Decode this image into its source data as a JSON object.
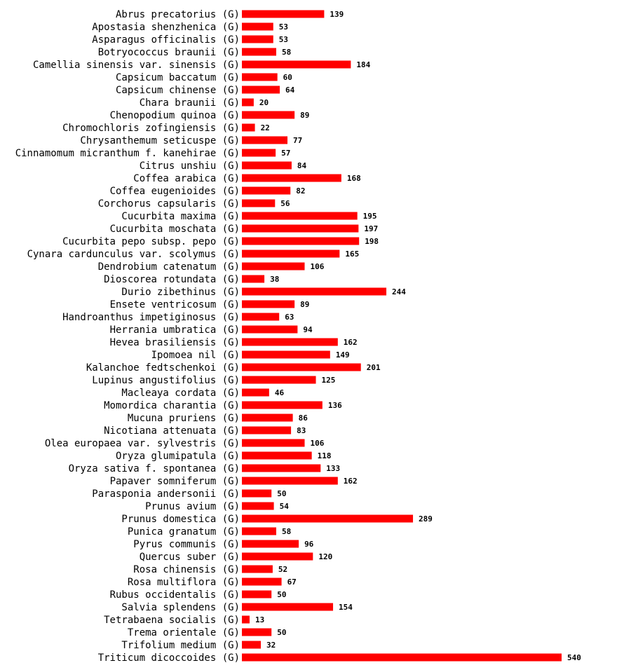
{
  "chart_data": {
    "type": "bar",
    "orientation": "horizontal",
    "title": "",
    "xlabel": "",
    "ylabel": "",
    "xlim": [
      0,
      540
    ],
    "grid": false,
    "bar_color": "#ff0000",
    "categories": [
      "Abrus precatorius (G)",
      "Apostasia shenzhenica (G)",
      "Asparagus officinalis (G)",
      "Botryococcus braunii (G)",
      "Camellia sinensis var. sinensis (G)",
      "Capsicum baccatum (G)",
      "Capsicum chinense (G)",
      "Chara braunii (G)",
      "Chenopodium quinoa (G)",
      "Chromochloris zofingiensis (G)",
      "Chrysanthemum seticuspe (G)",
      "Cinnamomum micranthum f. kanehirae (G)",
      "Citrus unshiu (G)",
      "Coffea arabica (G)",
      "Coffea eugenioides (G)",
      "Corchorus capsularis (G)",
      "Cucurbita maxima (G)",
      "Cucurbita moschata (G)",
      "Cucurbita pepo subsp. pepo (G)",
      "Cynara cardunculus var. scolymus (G)",
      "Dendrobium catenatum (G)",
      "Dioscorea rotundata (G)",
      "Durio zibethinus (G)",
      "Ensete ventricosum (G)",
      "Handroanthus impetiginosus (G)",
      "Herrania umbratica (G)",
      "Hevea brasiliensis (G)",
      "Ipomoea nil (G)",
      "Kalanchoe fedtschenkoi (G)",
      "Lupinus angustifolius (G)",
      "Macleaya cordata (G)",
      "Momordica charantia (G)",
      "Mucuna pruriens (G)",
      "Nicotiana attenuata (G)",
      "Olea europaea var. sylvestris (G)",
      "Oryza glumipatula (G)",
      "Oryza sativa f. spontanea (G)",
      "Papaver somniferum (G)",
      "Parasponia andersonii (G)",
      "Prunus avium (G)",
      "Prunus domestica (G)",
      "Punica granatum (G)",
      "Pyrus communis (G)",
      "Quercus suber (G)",
      "Rosa chinensis (G)",
      "Rosa multiflora (G)",
      "Rubus occidentalis (G)",
      "Salvia splendens (G)",
      "Tetrabaena socialis (G)",
      "Trema orientale (G)",
      "Trifolium medium (G)",
      "Triticum dicoccoides (G)"
    ],
    "values": [
      139,
      53,
      53,
      58,
      184,
      60,
      64,
      20,
      89,
      22,
      77,
      57,
      84,
      168,
      82,
      56,
      195,
      197,
      198,
      165,
      106,
      38,
      244,
      89,
      63,
      94,
      162,
      149,
      201,
      125,
      46,
      136,
      86,
      83,
      106,
      118,
      133,
      162,
      50,
      54,
      289,
      58,
      96,
      120,
      52,
      67,
      50,
      154,
      13,
      50,
      32,
      540
    ]
  }
}
